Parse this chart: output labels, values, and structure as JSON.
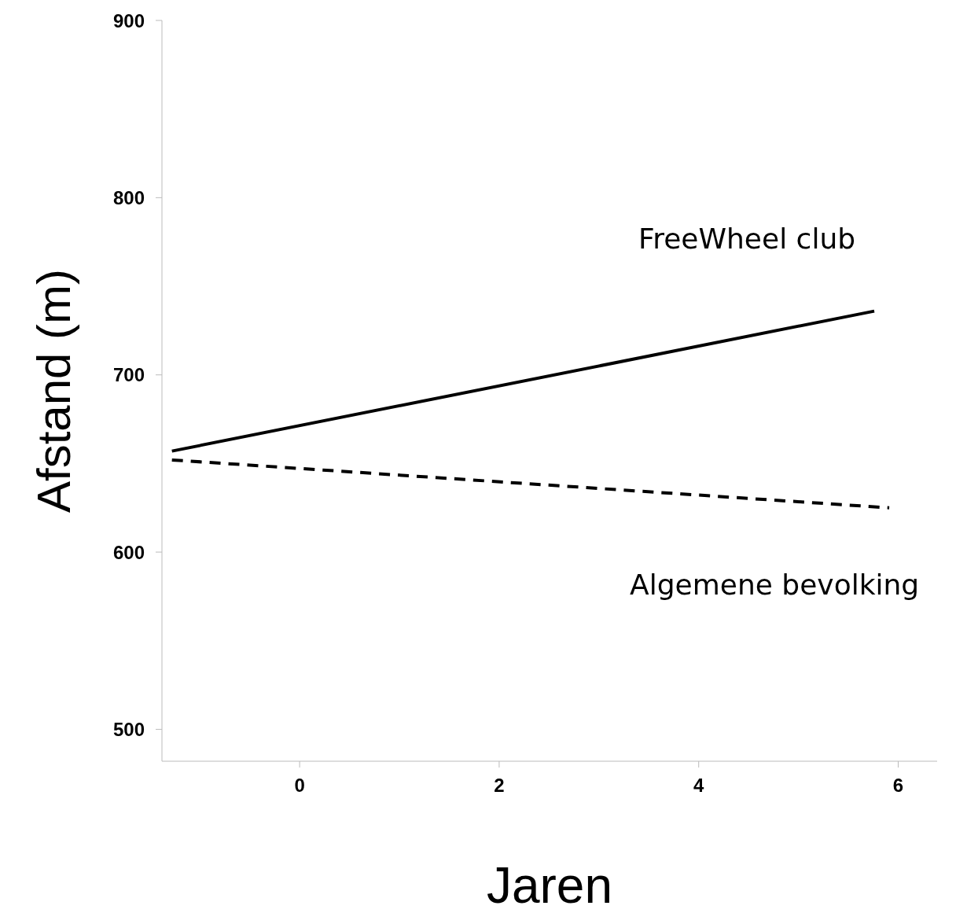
{
  "chart_data": {
    "type": "line",
    "xlabel": "Jaren",
    "ylabel": "Afstand (m)",
    "xlim": [
      -1.38,
      6.39
    ],
    "xticks": [
      0,
      2,
      4,
      6
    ],
    "ylim": [
      482,
      900
    ],
    "yticks": [
      500,
      600,
      700,
      800,
      900
    ],
    "grid": false,
    "legend": false,
    "marker": "none",
    "series": [
      {
        "name": "FreeWheel club",
        "color": "#000000",
        "line_style": "solid",
        "x": [
          -1.28,
          5.76
        ],
        "values": [
          657,
          736
        ]
      },
      {
        "name": "Algemene bevolking",
        "color": "#000000",
        "line_style": "dashed",
        "x": [
          -1.28,
          5.91
        ],
        "values": [
          652,
          625
        ]
      }
    ]
  }
}
